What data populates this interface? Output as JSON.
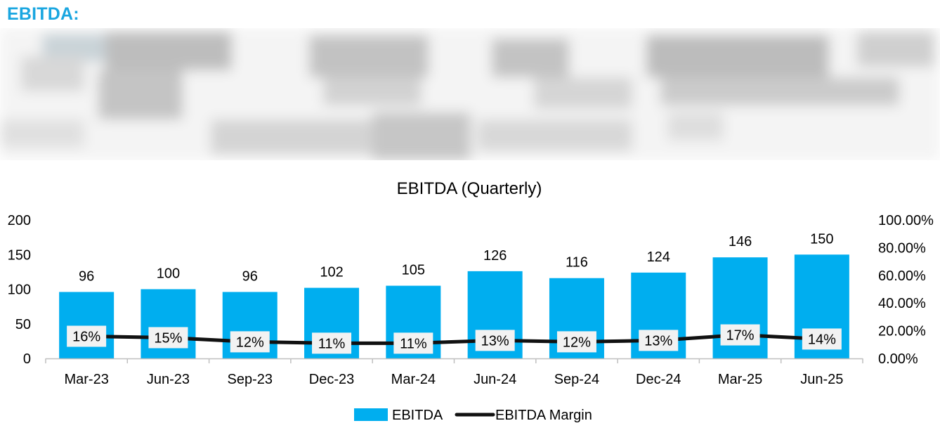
{
  "page": {
    "heading": "EBITDA:"
  },
  "colors": {
    "heading": "#1aa6e0",
    "bar": "#00aeef",
    "line": "#111111",
    "axis": "#bfbfbf",
    "text": "#000000"
  },
  "chart_data": {
    "type": "bar",
    "title": "EBITDA (Quarterly)",
    "categories": [
      "Mar-23",
      "Jun-23",
      "Sep-23",
      "Dec-23",
      "Mar-24",
      "Jun-24",
      "Sep-24",
      "Dec-24",
      "Mar-25",
      "Jun-25"
    ],
    "series": [
      {
        "name": "EBITDA",
        "type": "bar",
        "axis": "left",
        "values": [
          96,
          100,
          96,
          102,
          105,
          126,
          116,
          124,
          146,
          150
        ],
        "labels": [
          "96",
          "100",
          "96",
          "102",
          "105",
          "126",
          "116",
          "124",
          "146",
          "150"
        ]
      },
      {
        "name": "EBITDA Margin",
        "type": "line",
        "axis": "right",
        "values": [
          0.16,
          0.15,
          0.12,
          0.11,
          0.11,
          0.13,
          0.12,
          0.13,
          0.17,
          0.14
        ],
        "labels": [
          "16%",
          "15%",
          "12%",
          "11%",
          "11%",
          "13%",
          "12%",
          "13%",
          "17%",
          "14%"
        ]
      }
    ],
    "y_left": {
      "min": 0,
      "max": 200,
      "ticks": [
        "0",
        "50",
        "100",
        "150",
        "200"
      ]
    },
    "y_right": {
      "min": 0,
      "max": 1.0,
      "ticks": [
        "0.00%",
        "20.00%",
        "40.00%",
        "60.00%",
        "80.00%",
        "100.00%"
      ]
    },
    "grid": false,
    "legend": "bottom-center",
    "legend_entries": [
      "EBITDA",
      "EBITDA Margin"
    ]
  }
}
